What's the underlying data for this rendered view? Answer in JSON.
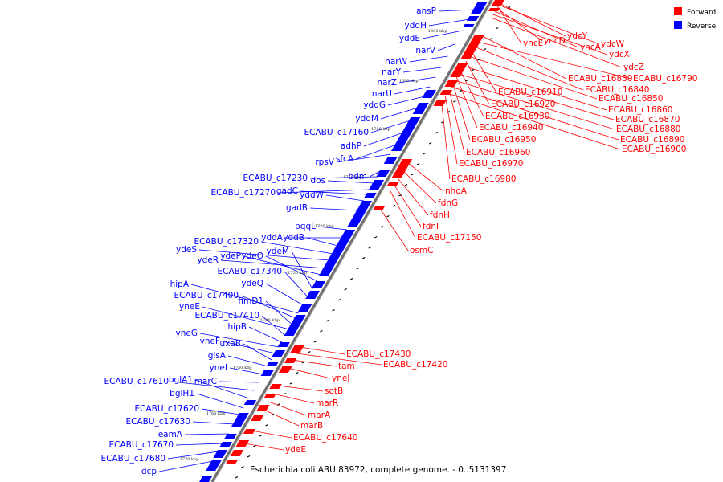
{
  "caption": "Escherichia coli ABU 83972, complete genome. - 0..5131397",
  "legend": [
    {
      "label": "Forward",
      "color": "#ff0000"
    },
    {
      "label": "Reverse",
      "color": "#0000ff"
    }
  ],
  "colors": {
    "forward": "#ff0000",
    "reverse": "#0000ff",
    "backbone": "#808080"
  },
  "ticks": [
    "1680 kbp",
    "1690 kbp",
    "1700 kbp",
    "1710 kbp",
    "1720 kbp",
    "1730 kbp",
    "1740 kbp",
    "1750 kbp",
    "1760 kbp",
    "1770 kbp"
  ],
  "reverse_genes": [
    "ansP",
    "yddH",
    "yddE",
    "narV",
    "narW",
    "narY",
    "narZ",
    "narU",
    "yddG",
    "yddM",
    "ECABU_c17160",
    "adhP",
    "sfcA",
    "rpsV",
    "bdm",
    "ECABU_c17230",
    "dos",
    "ECABU_c17270",
    "gadC",
    "yddW",
    "gadB",
    "pqqL",
    "yddA",
    "yddB",
    "ECABU_c17320",
    "ydeS",
    "ydeR",
    "ydeP",
    "ydeO",
    "ydeM",
    "ECABU_c17340",
    "ydeQ",
    "hipA",
    "ECABU_c17400",
    "fimD1",
    "yneE",
    "ECABU_c17410",
    "hipB",
    "yneG",
    "yneF",
    "uxaB",
    "glsA",
    "yneI",
    "marC",
    "ECABU_c17610",
    "bglA1",
    "bglH1",
    "ECABU_c17620",
    "ECABU_c17630",
    "eamA",
    "ECABU_c17670",
    "ECABU_c17680",
    "dcp"
  ],
  "forward_genes": [
    "ydcY",
    "ydcW",
    "yncE",
    "yncD",
    "yncA",
    "ydcX",
    "ydcZ",
    "ECABU_c16830",
    "ECABU_c16790",
    "ECABU_c16840",
    "ECABU_c16910",
    "ECABU_c16850",
    "ECABU_c16920",
    "ECABU_c16860",
    "ECABU_c16930",
    "ECABU_c16870",
    "ECABU_c16940",
    "ECABU_c16880",
    "ECABU_c16950",
    "ECABU_c16890",
    "ECABU_c16960",
    "ECABU_c16900",
    "ECABU_c16970",
    "ECABU_c16980",
    "nhoA",
    "fdnG",
    "fdnH",
    "fdnI",
    "ECABU_c17150",
    "osmC",
    "ECABU_c17430",
    "ECABU_c17420",
    "tam",
    "yneJ",
    "sotB",
    "marR",
    "marA",
    "marB",
    "ECABU_c17640",
    "ydeE"
  ]
}
